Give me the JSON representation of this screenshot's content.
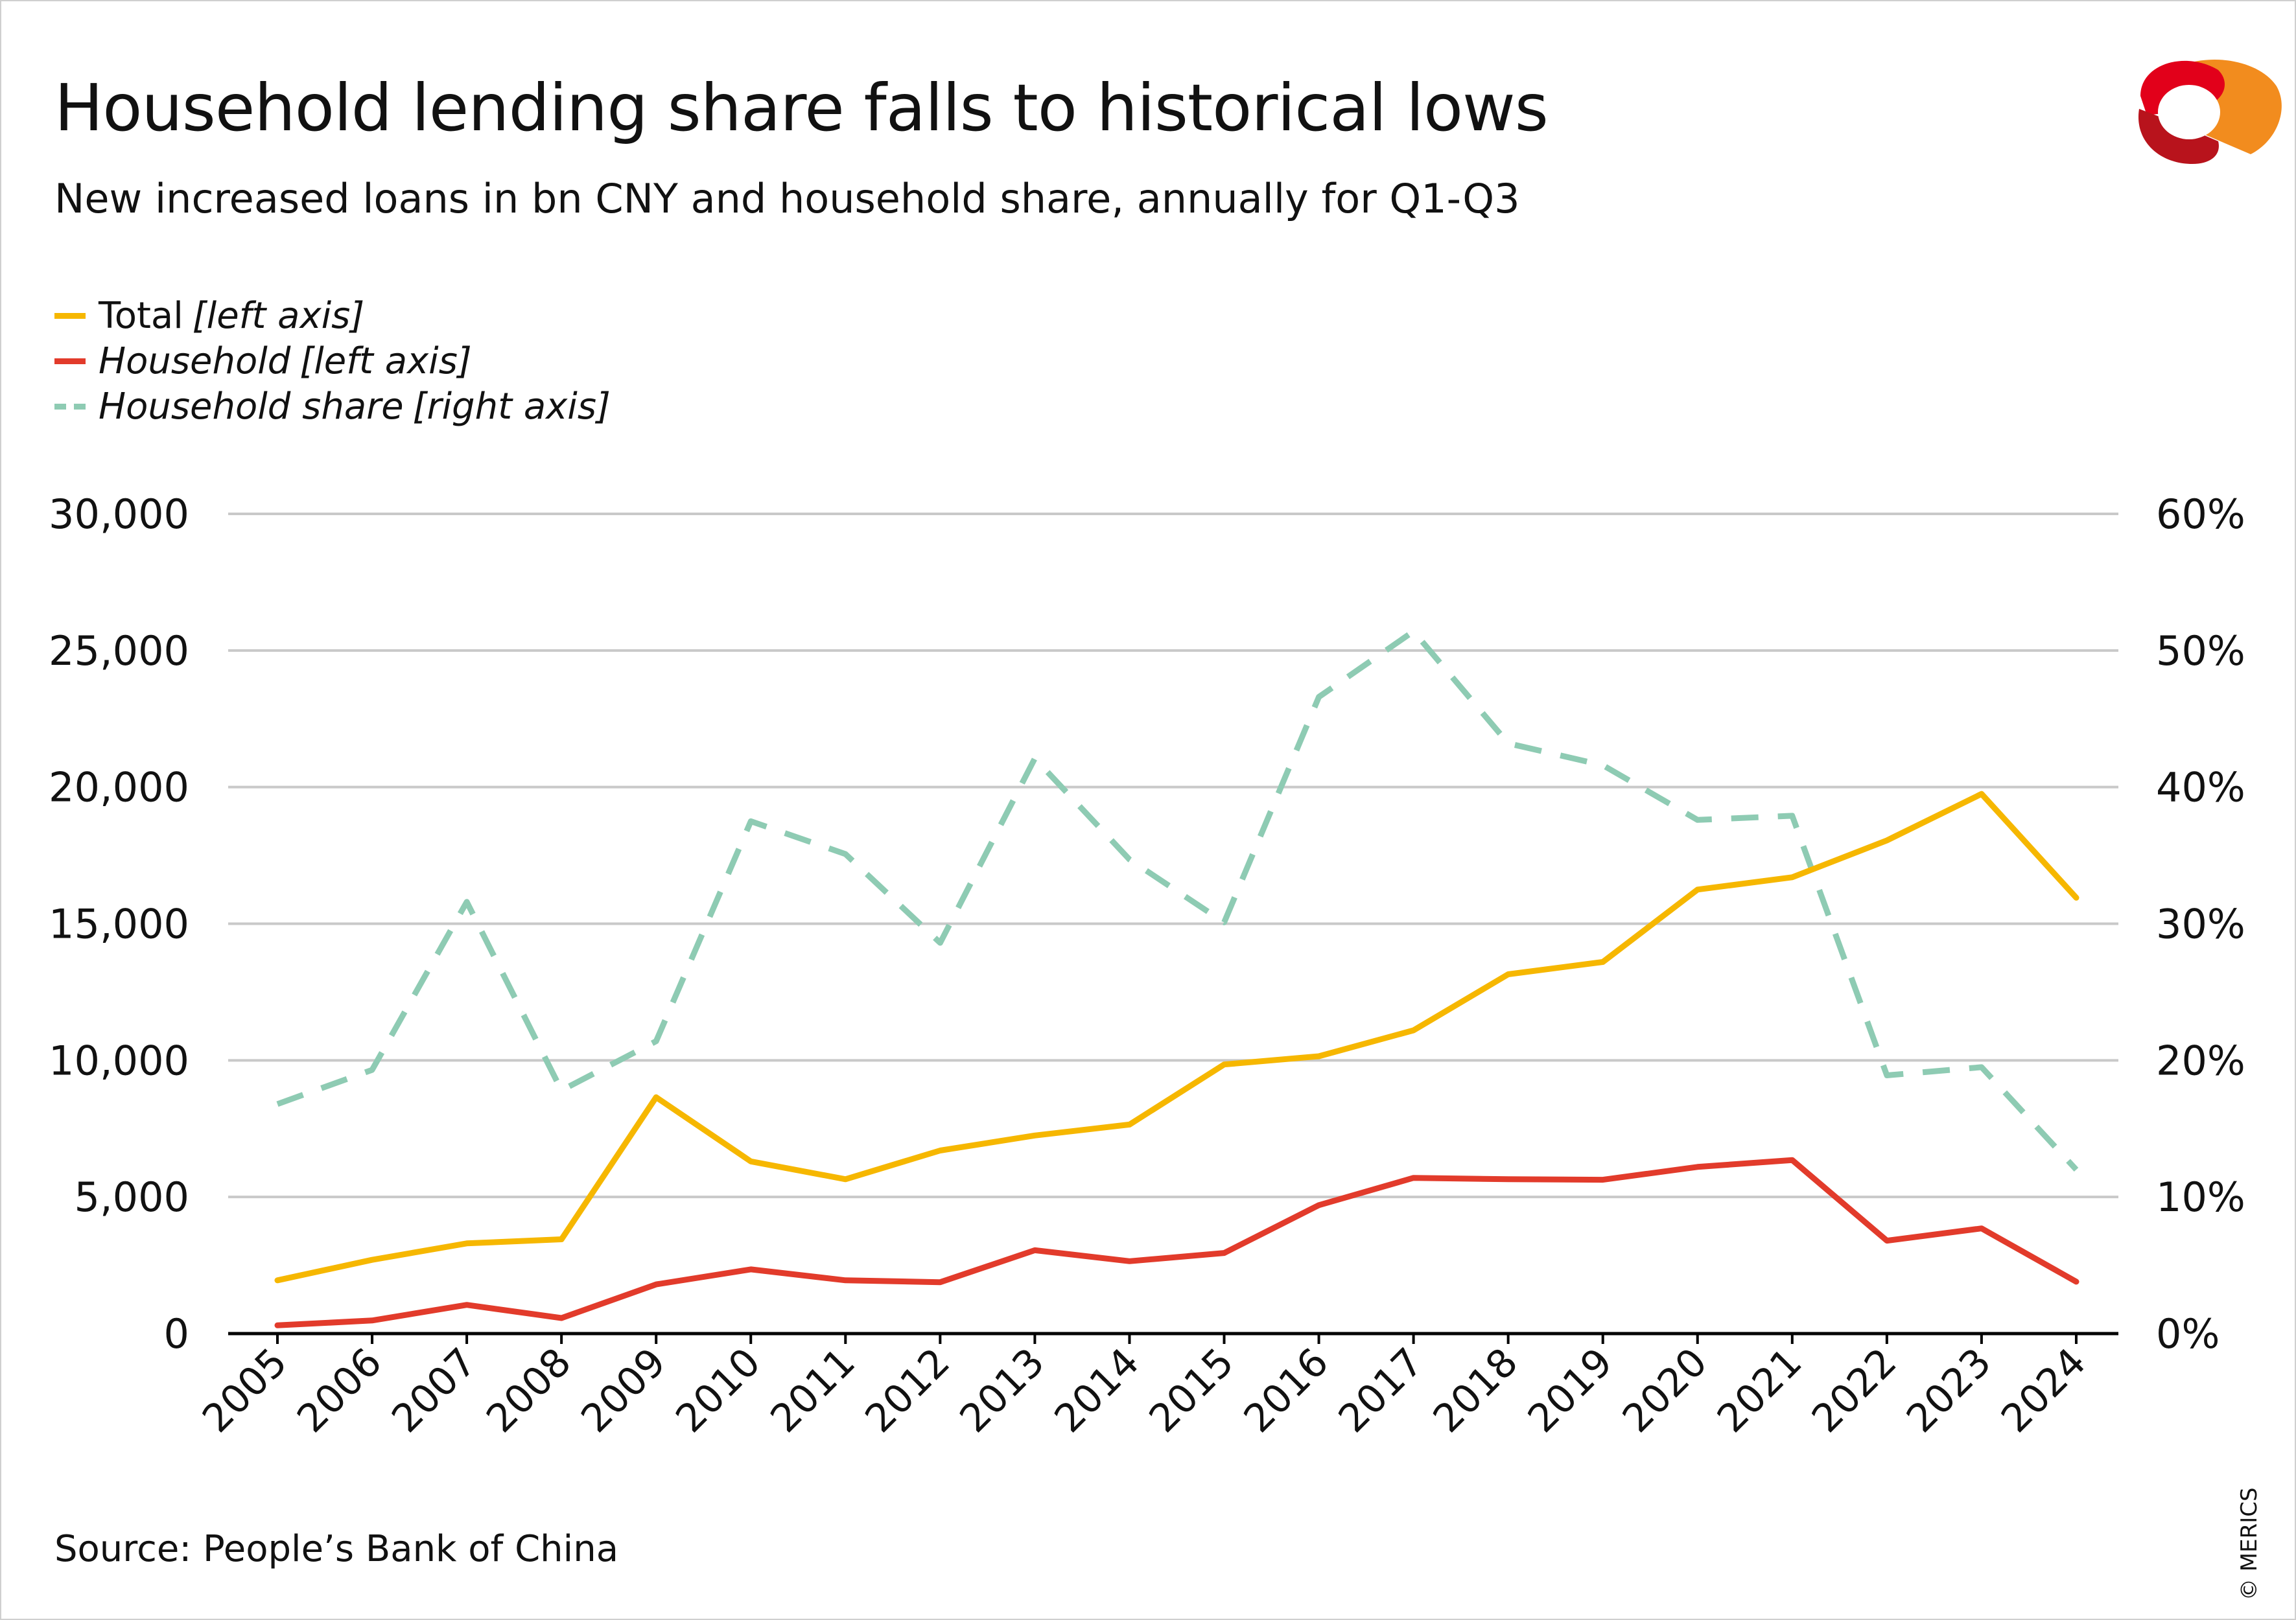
{
  "title": "Household lending share falls to historical lows",
  "subtitle": "New increased loans in bn CNY and household share, annually for Q1-Q3",
  "legend": [
    {
      "label": "Total",
      "axis": "[left axis]"
    },
    {
      "label": "Household",
      "axis": "[left axis]"
    },
    {
      "label": "Household share",
      "axis": "[right axis]"
    }
  ],
  "source": "Source: People’s Bank of China",
  "copyright": "© MERICS",
  "colors": {
    "total": "#F6B700",
    "household": "#E23B2B",
    "share": "#8ECBB3",
    "grid": "#C9C9C9",
    "axis": "#000000",
    "logo_orange": "#F28C1E",
    "logo_red": "#E2001A",
    "logo_dark": "#B8131C"
  },
  "chart_data": {
    "type": "line",
    "categories": [
      "2005",
      "2006",
      "2007",
      "2008",
      "2009",
      "2010",
      "2011",
      "2012",
      "2013",
      "2014",
      "2015",
      "2016",
      "2017",
      "2018",
      "2019",
      "2020",
      "2021",
      "2022",
      "2023",
      "2024"
    ],
    "series": [
      {
        "name": "Total",
        "axis": "left",
        "values": [
          1950,
          2700,
          3300,
          3450,
          8650,
          6300,
          5650,
          6700,
          7250,
          7650,
          9850,
          10150,
          11100,
          13150,
          13600,
          16250,
          16700,
          18050,
          19750,
          15950
        ]
      },
      {
        "name": "Household",
        "axis": "left",
        "values": [
          300,
          480,
          1050,
          570,
          1800,
          2350,
          1950,
          1880,
          3050,
          2650,
          2950,
          4700,
          5700,
          5650,
          5630,
          6100,
          6350,
          3400,
          3850,
          1900
        ]
      },
      {
        "name": "Household share",
        "axis": "right",
        "values": [
          16.8,
          19.3,
          31.6,
          17.8,
          21.4,
          37.5,
          35.1,
          28.6,
          42.1,
          34.7,
          30.1,
          46.6,
          51.4,
          43.2,
          41.6,
          37.6,
          37.9,
          18.9,
          19.5,
          12.0
        ]
      }
    ],
    "left_axis": {
      "min": 0,
      "max": 30000,
      "ticks": [
        "0",
        "5,000",
        "10,000",
        "15,000",
        "20,000",
        "25,000",
        "30,000"
      ]
    },
    "right_axis": {
      "min": 0,
      "max": 60,
      "ticks": [
        "0%",
        "10%",
        "20%",
        "30%",
        "40%",
        "50%",
        "60%"
      ]
    },
    "grid": true,
    "legend_position": "top-left"
  }
}
